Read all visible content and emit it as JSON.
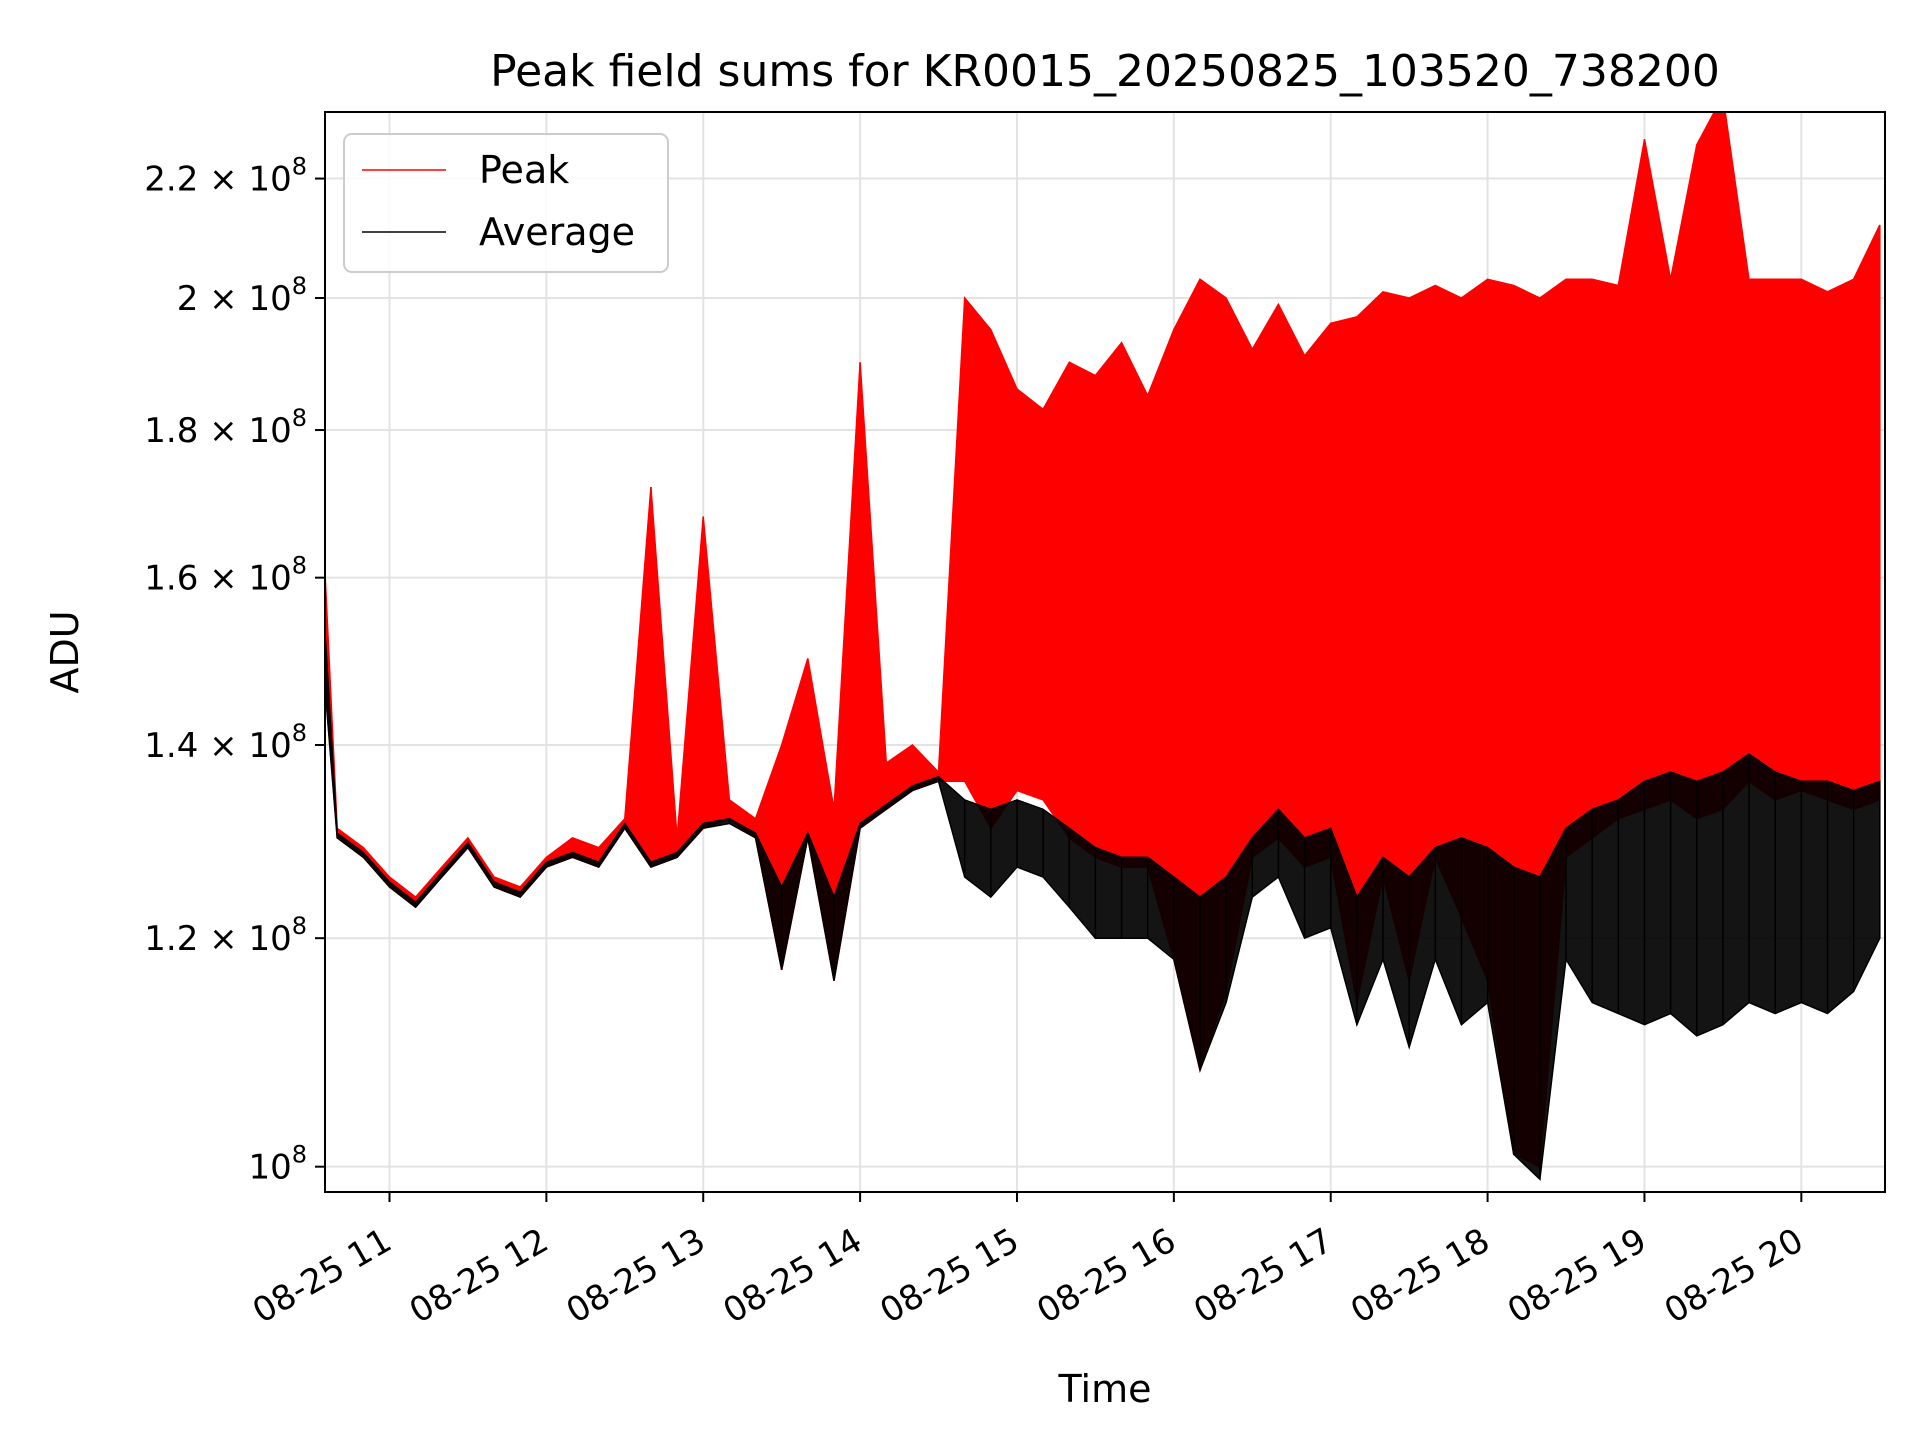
{
  "chart_data": {
    "type": "line",
    "title": "Peak field sums for KR0015_20250825_103520_738200",
    "xlabel": "Time",
    "ylabel": "ADU",
    "yscale": "log",
    "xlim": [
      "2025-08-25T10:35:20",
      "2025-08-25T20:32:00"
    ],
    "ylim": [
      98000000,
      232000000
    ],
    "grid": true,
    "legend": "top-left",
    "x_ticks": [
      {
        "value": "2025-08-25T11:00",
        "label": "08-25 11"
      },
      {
        "value": "2025-08-25T12:00",
        "label": "08-25 12"
      },
      {
        "value": "2025-08-25T13:00",
        "label": "08-25 13"
      },
      {
        "value": "2025-08-25T14:00",
        "label": "08-25 14"
      },
      {
        "value": "2025-08-25T15:00",
        "label": "08-25 15"
      },
      {
        "value": "2025-08-25T16:00",
        "label": "08-25 16"
      },
      {
        "value": "2025-08-25T17:00",
        "label": "08-25 17"
      },
      {
        "value": "2025-08-25T18:00",
        "label": "08-25 18"
      },
      {
        "value": "2025-08-25T19:00",
        "label": "08-25 19"
      },
      {
        "value": "2025-08-25T20:00",
        "label": "08-25 20"
      }
    ],
    "y_ticks": [
      {
        "value": 100000000,
        "mant": "10",
        "exp": "8"
      },
      {
        "value": 120000000,
        "mant": "1.2 × 10",
        "exp": "8"
      },
      {
        "value": 140000000,
        "mant": "1.4 × 10",
        "exp": "8"
      },
      {
        "value": 160000000,
        "mant": "1.6 × 10",
        "exp": "8"
      },
      {
        "value": 180000000,
        "mant": "1.8 × 10",
        "exp": "8"
      },
      {
        "value": 200000000,
        "mant": "2 × 10",
        "exp": "8"
      },
      {
        "value": 220000000,
        "mant": "2.2 × 10",
        "exp": "8"
      }
    ],
    "series": [
      {
        "name": "Peak",
        "color": "#ff0000",
        "x": [
          "2025-08-25T10:35",
          "2025-08-25T10:40",
          "2025-08-25T10:50",
          "2025-08-25T11:00",
          "2025-08-25T11:10",
          "2025-08-25T11:20",
          "2025-08-25T11:30",
          "2025-08-25T11:40",
          "2025-08-25T11:50",
          "2025-08-25T12:00",
          "2025-08-25T12:10",
          "2025-08-25T12:20",
          "2025-08-25T12:30",
          "2025-08-25T12:40",
          "2025-08-25T12:50",
          "2025-08-25T13:00",
          "2025-08-25T13:10",
          "2025-08-25T13:20",
          "2025-08-25T13:30",
          "2025-08-25T13:40",
          "2025-08-25T13:50",
          "2025-08-25T14:00",
          "2025-08-25T14:10",
          "2025-08-25T14:20",
          "2025-08-25T14:30",
          "2025-08-25T14:40",
          "2025-08-25T14:50",
          "2025-08-25T15:00",
          "2025-08-25T15:10",
          "2025-08-25T15:20",
          "2025-08-25T15:30",
          "2025-08-25T15:40",
          "2025-08-25T15:50",
          "2025-08-25T16:00",
          "2025-08-25T16:10",
          "2025-08-25T16:20",
          "2025-08-25T16:30",
          "2025-08-25T16:40",
          "2025-08-25T16:50",
          "2025-08-25T17:00",
          "2025-08-25T17:10",
          "2025-08-25T17:20",
          "2025-08-25T17:30",
          "2025-08-25T17:40",
          "2025-08-25T17:50",
          "2025-08-25T18:00",
          "2025-08-25T18:10",
          "2025-08-25T18:20",
          "2025-08-25T18:30",
          "2025-08-25T18:40",
          "2025-08-25T18:50",
          "2025-08-25T19:00",
          "2025-08-25T19:10",
          "2025-08-25T19:20",
          "2025-08-25T19:30",
          "2025-08-25T19:40",
          "2025-08-25T19:50",
          "2025-08-25T20:00",
          "2025-08-25T20:10",
          "2025-08-25T20:20",
          "2025-08-25T20:30"
        ],
        "upper": [
          163000000,
          131000000,
          129000000,
          126000000,
          124000000,
          127000000,
          130000000,
          126000000,
          125000000,
          128000000,
          130000000,
          129000000,
          132000000,
          172000000,
          130000000,
          168000000,
          134000000,
          132000000,
          140000000,
          150000000,
          133000000,
          190000000,
          138000000,
          140000000,
          137000000,
          200000000,
          195000000,
          186000000,
          183000000,
          190000000,
          188000000,
          193000000,
          185000000,
          195000000,
          203000000,
          200000000,
          192000000,
          199000000,
          191000000,
          196000000,
          197000000,
          201000000,
          200000000,
          202000000,
          200000000,
          203000000,
          202000000,
          200000000,
          203000000,
          203000000,
          202000000,
          227000000,
          203000000,
          226000000,
          235000000,
          203000000,
          203000000,
          203000000,
          201000000,
          203000000,
          212000000
        ],
        "lower": [
          148000000,
          130000000,
          128000000,
          125000000,
          123000000,
          126000000,
          129000000,
          125000000,
          124000000,
          127000000,
          128000000,
          127000000,
          131000000,
          127000000,
          128000000,
          131000000,
          132000000,
          130000000,
          117000000,
          130000000,
          116000000,
          131000000,
          133000000,
          135000000,
          136000000,
          136000000,
          131000000,
          135000000,
          134000000,
          130000000,
          128000000,
          127000000,
          127000000,
          118000000,
          108000000,
          115000000,
          128000000,
          130000000,
          127000000,
          128000000,
          114000000,
          126000000,
          116000000,
          128000000,
          122000000,
          116000000,
          101000000,
          100000000,
          128000000,
          130000000,
          132000000,
          133000000,
          134000000,
          132000000,
          133000000,
          136000000,
          134000000,
          135000000,
          134000000,
          133000000,
          134000000
        ]
      },
      {
        "name": "Average",
        "color": "#000000",
        "x": [
          "2025-08-25T10:35",
          "2025-08-25T10:40",
          "2025-08-25T10:50",
          "2025-08-25T11:00",
          "2025-08-25T11:10",
          "2025-08-25T11:20",
          "2025-08-25T11:30",
          "2025-08-25T11:40",
          "2025-08-25T11:50",
          "2025-08-25T12:00",
          "2025-08-25T12:10",
          "2025-08-25T12:20",
          "2025-08-25T12:30",
          "2025-08-25T12:40",
          "2025-08-25T12:50",
          "2025-08-25T13:00",
          "2025-08-25T13:10",
          "2025-08-25T13:20",
          "2025-08-25T13:30",
          "2025-08-25T13:40",
          "2025-08-25T13:50",
          "2025-08-25T14:00",
          "2025-08-25T14:10",
          "2025-08-25T14:20",
          "2025-08-25T14:30",
          "2025-08-25T14:40",
          "2025-08-25T14:50",
          "2025-08-25T15:00",
          "2025-08-25T15:10",
          "2025-08-25T15:20",
          "2025-08-25T15:30",
          "2025-08-25T15:40",
          "2025-08-25T15:50",
          "2025-08-25T16:00",
          "2025-08-25T16:10",
          "2025-08-25T16:20",
          "2025-08-25T16:30",
          "2025-08-25T16:40",
          "2025-08-25T16:50",
          "2025-08-25T17:00",
          "2025-08-25T17:10",
          "2025-08-25T17:20",
          "2025-08-25T17:30",
          "2025-08-25T17:40",
          "2025-08-25T17:50",
          "2025-08-25T18:00",
          "2025-08-25T18:10",
          "2025-08-25T18:20",
          "2025-08-25T18:30",
          "2025-08-25T18:40",
          "2025-08-25T18:50",
          "2025-08-25T19:00",
          "2025-08-25T19:10",
          "2025-08-25T19:20",
          "2025-08-25T19:30",
          "2025-08-25T19:40",
          "2025-08-25T19:50",
          "2025-08-25T20:00",
          "2025-08-25T20:10",
          "2025-08-25T20:20",
          "2025-08-25T20:30"
        ],
        "upper": [
          155000000,
          130500000,
          128500000,
          125500000,
          123500000,
          126500000,
          129500000,
          125500000,
          124500000,
          127500000,
          128500000,
          127500000,
          131500000,
          127500000,
          128500000,
          131500000,
          132000000,
          130500000,
          125000000,
          130500000,
          124000000,
          131500000,
          133500000,
          135500000,
          136500000,
          134000000,
          133000000,
          134000000,
          133000000,
          131000000,
          129000000,
          128000000,
          128000000,
          126000000,
          124000000,
          126000000,
          130000000,
          133000000,
          130000000,
          131000000,
          124000000,
          128000000,
          126000000,
          129000000,
          130000000,
          129000000,
          127000000,
          126000000,
          131000000,
          133000000,
          134000000,
          136000000,
          137000000,
          136000000,
          137000000,
          139000000,
          137000000,
          136000000,
          136000000,
          135000000,
          136000000
        ],
        "lower": [
          148000000,
          130000000,
          128000000,
          125000000,
          123000000,
          126000000,
          129000000,
          125000000,
          124000000,
          127000000,
          128000000,
          127000000,
          131000000,
          127000000,
          128000000,
          131000000,
          131500000,
          130000000,
          117000000,
          130000000,
          116000000,
          131000000,
          133000000,
          135000000,
          136000000,
          126000000,
          124000000,
          127000000,
          126000000,
          123000000,
          120000000,
          120000000,
          120000000,
          118000000,
          108000000,
          114000000,
          124000000,
          126000000,
          120000000,
          121000000,
          112000000,
          118000000,
          110000000,
          118000000,
          112000000,
          114000000,
          101000000,
          99000000,
          118000000,
          114000000,
          113000000,
          112000000,
          113000000,
          111000000,
          112000000,
          114000000,
          113000000,
          114000000,
          113000000,
          115000000,
          120000000
        ]
      }
    ]
  }
}
